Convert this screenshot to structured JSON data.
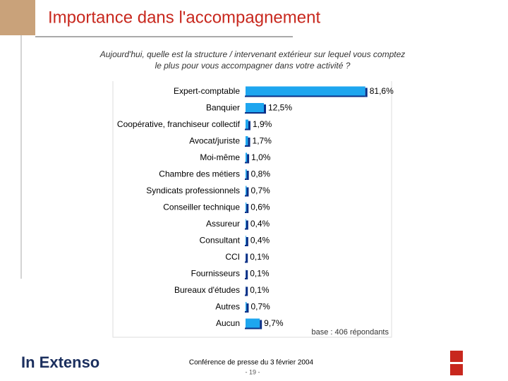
{
  "chart_data": {
    "type": "hbar",
    "title": "Importance dans l'accompagnement",
    "subtitle_lines": [
      "Aujourd'hui, quelle est la structure / intervenant extérieur sur lequel vous comptez",
      "le plus pour vous accompagner dans votre activité ?"
    ],
    "categories": [
      "Expert-comptable",
      "Banquier",
      "Coopérative, franchiseur collectif",
      "Avocat/juriste",
      "Moi-même",
      "Chambre des métiers",
      "Syndicats professionnels",
      "Conseiller technique",
      "Assureur",
      "Consultant",
      "CCI",
      "Fournisseurs",
      "Bureaux d'études",
      "Autres",
      "Aucun"
    ],
    "values": [
      81.6,
      12.5,
      1.9,
      1.7,
      1.0,
      0.8,
      0.7,
      0.6,
      0.4,
      0.4,
      0.1,
      0.1,
      0.1,
      0.7,
      9.7
    ],
    "value_labels": [
      "81,6%",
      "12,5%",
      "1,9%",
      "1,7%",
      "1,0%",
      "0,8%",
      "0,7%",
      "0,6%",
      "0,4%",
      "0,4%",
      "0,1%",
      "0,1%",
      "0,1%",
      "0,7%",
      "9,7%"
    ],
    "color": "#1ea6ef",
    "note": "base : 406 répondants"
  },
  "footer": {
    "brand": "In Extenso",
    "event": "Conférence de presse du 3 février 2004",
    "page": "- 19 -"
  }
}
